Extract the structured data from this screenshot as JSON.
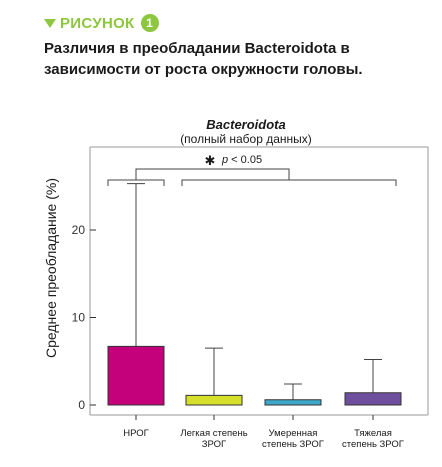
{
  "figure": {
    "label": "РИСУНОК",
    "number": "1",
    "title": "Различия в преобладании Bacteroidota в зависимости от роста окружности головы.",
    "accent_color": "#8dc63f",
    "arrow_icon": "down-triangle-icon"
  },
  "chart_data": {
    "type": "bar",
    "title": "Bacteroidota",
    "subtitle": "(полный набор данных)",
    "ylabel": "Среднее преобладание (%)",
    "xlabel": "",
    "ylim": [
      0,
      27
    ],
    "yticks": [
      0,
      10,
      20
    ],
    "grid": false,
    "categories": [
      [
        "НРОГ"
      ],
      [
        "Легкая степень",
        "ЗРОГ"
      ],
      [
        "Умеренная",
        "степень ЗРОГ"
      ],
      [
        "Тяжелая",
        "степень ЗРОГ"
      ]
    ],
    "values": [
      6.7,
      1.1,
      0.6,
      1.4
    ],
    "error_upper": [
      25.3,
      6.5,
      2.4,
      5.2
    ],
    "colors": [
      "#c4007a",
      "#d4e02a",
      "#3da7c9",
      "#6e4f9e"
    ],
    "significance": {
      "marker": "✱",
      "label": "p < 0.05",
      "p_prefix": "p",
      "p_rest": " < 0.05",
      "compare": "НРОГ vs остальные группы"
    }
  }
}
